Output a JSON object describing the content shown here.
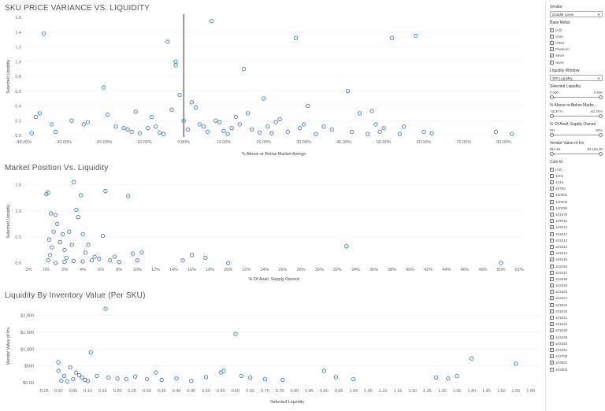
{
  "chart_data": [
    {
      "type": "scatter",
      "title": "SKU PRICE VARIANCE VS. LIQUIDITY",
      "xlabel": "% Above or Below Market Averge",
      "ylabel": "Selected Liquidity",
      "xlim": [
        -40,
        85
      ],
      "ylim": [
        0,
        1.6
      ],
      "xticks": [
        "-40.00%",
        "-30.00%",
        "-20.00%",
        "-10.00%",
        "0.00%",
        "10.00%",
        "20.00%",
        "30.00%",
        "40.00%",
        "50.00%",
        "60.00%",
        "70.00%",
        "80.00%"
      ],
      "xtick_values": [
        -40,
        -30,
        -20,
        -10,
        0,
        10,
        20,
        30,
        40,
        50,
        60,
        70,
        80
      ],
      "yticks": [
        "0.0",
        "0.2",
        "0.4",
        "0.6",
        "0.8",
        "1.0",
        "1.2",
        "1.4",
        "1.6"
      ],
      "ytick_values": [
        0,
        0.2,
        0.4,
        0.6,
        0.8,
        1.0,
        1.2,
        1.4,
        1.6
      ],
      "reference_line_x": 0,
      "points": [
        {
          "x": -35,
          "y": 1.38
        },
        {
          "x": -38,
          "y": 0.03
        },
        {
          "x": -37,
          "y": 0.25
        },
        {
          "x": -36,
          "y": 0.3
        },
        {
          "x": -33,
          "y": 0.15
        },
        {
          "x": -32,
          "y": 0.05
        },
        {
          "x": -28,
          "y": 0.2
        },
        {
          "x": -25,
          "y": 0.15
        },
        {
          "x": -24,
          "y": 0.18
        },
        {
          "x": -20,
          "y": 0.65
        },
        {
          "x": -19,
          "y": 0.28
        },
        {
          "x": -17,
          "y": 0.12
        },
        {
          "x": -15,
          "y": 0.1
        },
        {
          "x": -14,
          "y": 0.08
        },
        {
          "x": -13,
          "y": 0.05
        },
        {
          "x": -12,
          "y": 0.32
        },
        {
          "x": -11,
          "y": 0.03
        },
        {
          "x": -9,
          "y": 0.1
        },
        {
          "x": -8,
          "y": 0.25
        },
        {
          "x": -7,
          "y": 0.12
        },
        {
          "x": -6,
          "y": 0.04
        },
        {
          "x": -5,
          "y": 0.02
        },
        {
          "x": -4,
          "y": 1.27
        },
        {
          "x": -3,
          "y": 0.35
        },
        {
          "x": -2,
          "y": 1.0
        },
        {
          "x": -2,
          "y": 0.95
        },
        {
          "x": -1,
          "y": 0.55
        },
        {
          "x": 0,
          "y": 0.2
        },
        {
          "x": 1,
          "y": 0.08
        },
        {
          "x": 2,
          "y": 0.45
        },
        {
          "x": 3,
          "y": 0.38
        },
        {
          "x": 4,
          "y": 0.15
        },
        {
          "x": 5,
          "y": 0.12
        },
        {
          "x": 6,
          "y": 0.05
        },
        {
          "x": 7,
          "y": 1.55
        },
        {
          "x": 8,
          "y": 0.2
        },
        {
          "x": 9,
          "y": 0.18
        },
        {
          "x": 10,
          "y": 0.06
        },
        {
          "x": 11,
          "y": 0.02
        },
        {
          "x": 12,
          "y": 0.1
        },
        {
          "x": 13,
          "y": 0.25
        },
        {
          "x": 14,
          "y": 0.15
        },
        {
          "x": 15,
          "y": 0.9
        },
        {
          "x": 16,
          "y": 0.3
        },
        {
          "x": 17,
          "y": 0.08
        },
        {
          "x": 19,
          "y": 0.04
        },
        {
          "x": 20,
          "y": 0.5
        },
        {
          "x": 21,
          "y": 0.12
        },
        {
          "x": 22,
          "y": 0.03
        },
        {
          "x": 23,
          "y": 0.18
        },
        {
          "x": 24,
          "y": 0.22
        },
        {
          "x": 26,
          "y": 0.05
        },
        {
          "x": 28,
          "y": 1.32
        },
        {
          "x": 29,
          "y": 0.1
        },
        {
          "x": 30,
          "y": 0.15
        },
        {
          "x": 31,
          "y": 0.4
        },
        {
          "x": 33,
          "y": 0.02
        },
        {
          "x": 35,
          "y": 0.12
        },
        {
          "x": 37,
          "y": 0.08
        },
        {
          "x": 41,
          "y": 0.6
        },
        {
          "x": 42,
          "y": 0.05
        },
        {
          "x": 44,
          "y": 0.3
        },
        {
          "x": 46,
          "y": 0.02
        },
        {
          "x": 47,
          "y": 0.33
        },
        {
          "x": 48,
          "y": 0.15
        },
        {
          "x": 49,
          "y": 0.05
        },
        {
          "x": 50,
          "y": 0.1
        },
        {
          "x": 52,
          "y": 1.32
        },
        {
          "x": 54,
          "y": 0.02
        },
        {
          "x": 55,
          "y": 0.12
        },
        {
          "x": 58,
          "y": 1.35
        },
        {
          "x": 60,
          "y": 0.05
        },
        {
          "x": 62,
          "y": 0.03
        },
        {
          "x": 78,
          "y": 0.05
        },
        {
          "x": 82,
          "y": 0.02
        }
      ]
    },
    {
      "type": "scatter",
      "title": "Market Position Vs. Liquidity",
      "xlabel": "% Of Avail. Supply Owned",
      "ylabel": "Selected Liquidity",
      "xlim": [
        -2.5,
        52.5
      ],
      "ylim": [
        0,
        1.6
      ],
      "xticks": [
        "-2%",
        "0%",
        "2%",
        "4%",
        "6%",
        "8%",
        "10%",
        "12%",
        "14%",
        "16%",
        "18%",
        "20%",
        "22%",
        "24%",
        "26%",
        "28%",
        "30%",
        "32%",
        "34%",
        "36%",
        "38%",
        "40%",
        "42%",
        "44%",
        "46%",
        "48%",
        "50%",
        "52%"
      ],
      "xtick_values": [
        -2,
        0,
        2,
        4,
        6,
        8,
        10,
        12,
        14,
        16,
        18,
        20,
        22,
        24,
        26,
        28,
        30,
        32,
        34,
        36,
        38,
        40,
        42,
        44,
        46,
        48,
        50,
        52
      ],
      "yticks": [
        "0.0",
        "0.5",
        "1.0",
        "1.5"
      ],
      "ytick_values": [
        0,
        0.5,
        1.0,
        1.5
      ],
      "points": [
        {
          "x": 0.0,
          "y": 1.32
        },
        {
          "x": 0.2,
          "y": 1.35
        },
        {
          "x": 0.5,
          "y": 0.95
        },
        {
          "x": 0.8,
          "y": 0.6
        },
        {
          "x": 1.0,
          "y": 0.92
        },
        {
          "x": 1.2,
          "y": 0.75
        },
        {
          "x": 0.3,
          "y": 0.45
        },
        {
          "x": 0.6,
          "y": 0.3
        },
        {
          "x": 0.4,
          "y": 0.15
        },
        {
          "x": 0.2,
          "y": 0.05
        },
        {
          "x": 1.5,
          "y": 0.4
        },
        {
          "x": 1.8,
          "y": 0.55
        },
        {
          "x": 2.0,
          "y": 0.25
        },
        {
          "x": 2.2,
          "y": 0.1
        },
        {
          "x": 2.5,
          "y": 0.6
        },
        {
          "x": 2.8,
          "y": 0.35
        },
        {
          "x": 3.0,
          "y": 1.55
        },
        {
          "x": 3.3,
          "y": 1.02
        },
        {
          "x": 3.5,
          "y": 0.88
        },
        {
          "x": 3.8,
          "y": 1.3
        },
        {
          "x": 4.0,
          "y": 0.55
        },
        {
          "x": 4.3,
          "y": 0.2
        },
        {
          "x": 4.6,
          "y": 0.35
        },
        {
          "x": 5.0,
          "y": 0.05
        },
        {
          "x": 5.3,
          "y": 0.12
        },
        {
          "x": 5.8,
          "y": 0.08
        },
        {
          "x": 6.2,
          "y": 0.52
        },
        {
          "x": 6.5,
          "y": 1.38
        },
        {
          "x": 7.0,
          "y": 0.05
        },
        {
          "x": 7.5,
          "y": 0.12
        },
        {
          "x": 8.0,
          "y": 0.02
        },
        {
          "x": 9.0,
          "y": 1.28
        },
        {
          "x": 9.5,
          "y": 0.18
        },
        {
          "x": 10.0,
          "y": 0.05
        },
        {
          "x": 10.5,
          "y": 0.2
        },
        {
          "x": 15.0,
          "y": 0.05
        },
        {
          "x": 16.0,
          "y": 0.15
        },
        {
          "x": 17.5,
          "y": 0.1
        },
        {
          "x": 20.0,
          "y": 0.0
        },
        {
          "x": 33.0,
          "y": 0.32
        },
        {
          "x": 50.0,
          "y": 0.0
        },
        {
          "x": 1.0,
          "y": 0.0
        },
        {
          "x": 2.0,
          "y": 0.02
        },
        {
          "x": 3.0,
          "y": 0.04
        },
        {
          "x": 4.0,
          "y": 0.03
        }
      ]
    },
    {
      "type": "scatter",
      "title": "Liquidity By Inventory Value (Per SKU)",
      "xlabel": "Selected Liquidity",
      "ylabel": "Vendor Value of Inv.",
      "xlim": [
        -0.075,
        1.625
      ],
      "ylim": [
        -50,
        2250
      ],
      "xticks": [
        "-0.05",
        "0.00",
        "0.05",
        "0.10",
        "0.15",
        "0.20",
        "0.25",
        "0.30",
        "0.35",
        "0.40",
        "0.45",
        "0.50",
        "0.55",
        "0.60",
        "0.65",
        "0.70",
        "0.75",
        "0.80",
        "0.85",
        "0.90",
        "0.95",
        "1.00",
        "1.05",
        "1.10",
        "1.15",
        "1.20",
        "1.25",
        "1.30",
        "1.35",
        "1.40",
        "1.45",
        "1.50",
        "1.55",
        "1.60"
      ],
      "xtick_values": [
        -0.05,
        0.0,
        0.05,
        0.1,
        0.15,
        0.2,
        0.25,
        0.3,
        0.35,
        0.4,
        0.45,
        0.5,
        0.55,
        0.6,
        0.65,
        0.7,
        0.75,
        0.8,
        0.85,
        0.9,
        0.95,
        1.0,
        1.05,
        1.1,
        1.15,
        1.2,
        1.25,
        1.3,
        1.35,
        1.4,
        1.45,
        1.5,
        1.55,
        1.6
      ],
      "yticks": [
        "$0.00",
        "$500",
        "$1,000",
        "$1,500",
        "$2,000"
      ],
      "ytick_values": [
        0,
        500,
        1000,
        1500,
        2000
      ],
      "points": [
        {
          "x": 0.0,
          "y": 600
        },
        {
          "x": 0.0,
          "y": 350
        },
        {
          "x": 0.02,
          "y": 200
        },
        {
          "x": 0.04,
          "y": 450
        },
        {
          "x": 0.05,
          "y": 100
        },
        {
          "x": 0.06,
          "y": 300
        },
        {
          "x": 0.08,
          "y": 150
        },
        {
          "x": 0.1,
          "y": 50
        },
        {
          "x": 0.11,
          "y": 900
        },
        {
          "x": 0.13,
          "y": 200
        },
        {
          "x": 0.16,
          "y": 2200
        },
        {
          "x": 0.17,
          "y": 150
        },
        {
          "x": 0.2,
          "y": 120
        },
        {
          "x": 0.23,
          "y": 100
        },
        {
          "x": 0.26,
          "y": 180
        },
        {
          "x": 0.3,
          "y": 100
        },
        {
          "x": 0.33,
          "y": 300
        },
        {
          "x": 0.35,
          "y": 80
        },
        {
          "x": 0.4,
          "y": 120
        },
        {
          "x": 0.45,
          "y": 50
        },
        {
          "x": 0.5,
          "y": 160
        },
        {
          "x": 0.55,
          "y": 300
        },
        {
          "x": 0.56,
          "y": 350
        },
        {
          "x": 0.6,
          "y": 1450
        },
        {
          "x": 0.62,
          "y": 200
        },
        {
          "x": 0.65,
          "y": 150
        },
        {
          "x": 0.7,
          "y": 100
        },
        {
          "x": 0.76,
          "y": 80
        },
        {
          "x": 0.9,
          "y": 350
        },
        {
          "x": 0.94,
          "y": 160
        },
        {
          "x": 1.0,
          "y": 100
        },
        {
          "x": 1.28,
          "y": 150
        },
        {
          "x": 1.32,
          "y": 120
        },
        {
          "x": 1.35,
          "y": 190
        },
        {
          "x": 1.4,
          "y": 720
        },
        {
          "x": 1.55,
          "y": 560
        },
        {
          "x": 0.01,
          "y": 60
        },
        {
          "x": 0.03,
          "y": 30
        },
        {
          "x": 0.07,
          "y": 220
        },
        {
          "x": 0.09,
          "y": 80
        }
      ]
    }
  ],
  "filters": {
    "vendor": {
      "title": "Vendor",
      "value": "Citadel Coins"
    },
    "base_metal": {
      "title": "Base Metal",
      "options": [
        {
          "label": "(All)",
          "checked": true
        },
        {
          "label": "Gold",
          "checked": true
        },
        {
          "label": "Other",
          "checked": true
        },
        {
          "label": "Platinum",
          "checked": true
        },
        {
          "label": "Silver",
          "checked": true
        },
        {
          "label": "Steel",
          "checked": true
        }
      ]
    },
    "liquidity_window": {
      "title": "Liquidity Window",
      "value": "300 Liquidity"
    },
    "selected_liquidity": {
      "title": "Selected Liquidity",
      "min": "0.000",
      "max": "0.660"
    },
    "pct_above_below": {
      "title": "% Above or Below Marke...",
      "min": "-55.67%",
      "max": "82.75%"
    },
    "pct_supply_owned": {
      "title": "% Of Avail. Supply Owned",
      "min": "0%",
      "max": "50%"
    },
    "vendor_value": {
      "title": "Vendor Value of Inv.",
      "min": "$14.95",
      "max": "$2,186.00"
    },
    "coin_id": {
      "title": "Coin Id",
      "options": [
        {
          "label": "(All)",
          "checked": true
        },
        {
          "label": "1002",
          "checked": true
        },
        {
          "label": "1415",
          "checked": true
        },
        {
          "label": "58790",
          "checked": true
        },
        {
          "label": "100002",
          "checked": true
        },
        {
          "label": "100003",
          "checked": true
        },
        {
          "label": "100259",
          "checked": true
        },
        {
          "label": "101876",
          "checked": true
        },
        {
          "label": "102012",
          "checked": true
        },
        {
          "label": "102013",
          "checked": true
        },
        {
          "label": "102014",
          "checked": true
        },
        {
          "label": "103312",
          "checked": true
        },
        {
          "label": "103313",
          "checked": true
        },
        {
          "label": "103314",
          "checked": true
        },
        {
          "label": "103315",
          "checked": true
        },
        {
          "label": "103316",
          "checked": true
        },
        {
          "label": "103317",
          "checked": true
        },
        {
          "label": "103318",
          "checked": true
        },
        {
          "label": "103319",
          "checked": true
        },
        {
          "label": "103320",
          "checked": true
        },
        {
          "label": "103321",
          "checked": true
        },
        {
          "label": "103322",
          "checked": true
        },
        {
          "label": "103340",
          "checked": true
        },
        {
          "label": "103341",
          "checked": true
        },
        {
          "label": "103342",
          "checked": true
        },
        {
          "label": "103448",
          "checked": true
        },
        {
          "label": "103449",
          "checked": true
        },
        {
          "label": "103450",
          "checked": true
        },
        {
          "label": "103451",
          "checked": true
        },
        {
          "label": "103705",
          "checked": true
        },
        {
          "label": "103804",
          "checked": true
        },
        {
          "label": "103805",
          "checked": true
        }
      ]
    }
  },
  "colors": {
    "mark": "#4e79a7",
    "reference_line": "#333333"
  }
}
